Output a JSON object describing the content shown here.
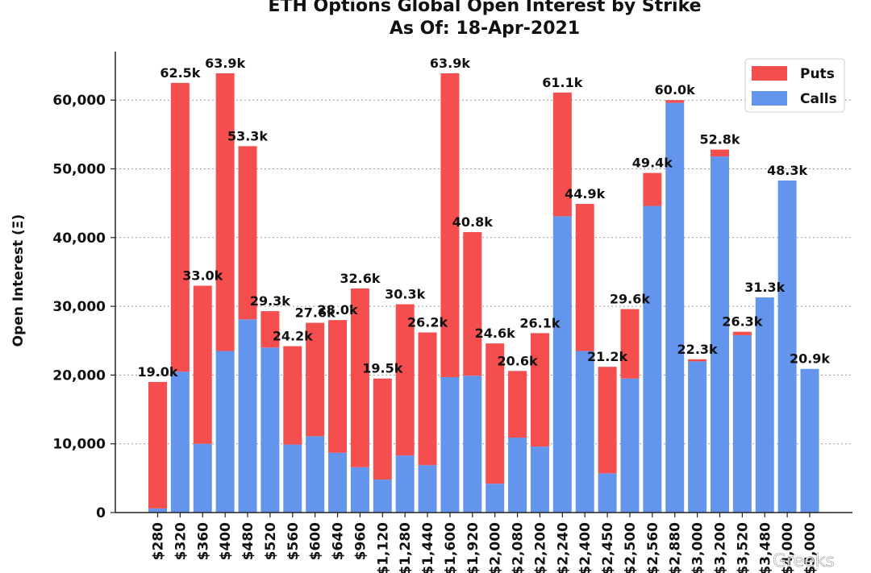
{
  "chart_data": {
    "type": "bar",
    "stacked": true,
    "title": "ETH Options Global Open Interest by Strike",
    "subtitle": "As Of: 18-Apr-2021",
    "ylabel": "Open Interest (Ξ)",
    "xlabel": "",
    "ylim": [
      0,
      67000
    ],
    "yticks": [
      0,
      10000,
      20000,
      30000,
      40000,
      50000,
      60000
    ],
    "ytick_labels": [
      "0",
      "10,000",
      "20,000",
      "30,000",
      "40,000",
      "50,000",
      "60,000"
    ],
    "grid": true,
    "legend_position": "top-right",
    "categories": [
      "$280",
      "$320",
      "$360",
      "$400",
      "$480",
      "$520",
      "$560",
      "$600",
      "$640",
      "$960",
      "$1,120",
      "$1,280",
      "$1,440",
      "$1,600",
      "$1,920",
      "$2,000",
      "$2,080",
      "$2,200",
      "$2,240",
      "$2,400",
      "$2,450",
      "$2,500",
      "$2,560",
      "$2,880",
      "$3,000",
      "$3,200",
      "$3,520",
      "$3,480",
      "$4,000",
      "$5,000"
    ],
    "series": [
      {
        "name": "Calls",
        "color": "#6495ED",
        "values": [
          600,
          20500,
          10000,
          23500,
          28100,
          24000,
          9900,
          11100,
          8700,
          6600,
          4800,
          8300,
          6900,
          19700,
          19900,
          4200,
          10900,
          9600,
          43100,
          23500,
          5700,
          19500,
          44600,
          59600,
          22000,
          51800,
          25800,
          31300,
          48300,
          20900
        ]
      },
      {
        "name": "Puts",
        "color": "#F44E4E",
        "values": [
          18400,
          42000,
          23000,
          40400,
          25200,
          5300,
          14300,
          16500,
          19300,
          26000,
          14700,
          22000,
          19300,
          44200,
          20900,
          20400,
          9700,
          16500,
          18000,
          21400,
          15500,
          10100,
          4800,
          400,
          300,
          1000,
          500,
          0,
          0,
          0
        ]
      }
    ],
    "total_labels": [
      "19.0k",
      "62.5k",
      "33.0k",
      "63.9k",
      "53.3k",
      "29.3k",
      "24.2k",
      "27.6k",
      "28.0k",
      "32.6k",
      "19.5k",
      "30.3k",
      "26.2k",
      "63.9k",
      "40.8k",
      "24.6k",
      "20.6k",
      "26.1k",
      "61.1k",
      "44.9k",
      "21.2k",
      "29.6k",
      "49.4k",
      "60.0k",
      "22.3k",
      "52.8k",
      "26.3k",
      "31.3k",
      "48.3k",
      "20.9k"
    ]
  },
  "watermark": "Greeks"
}
